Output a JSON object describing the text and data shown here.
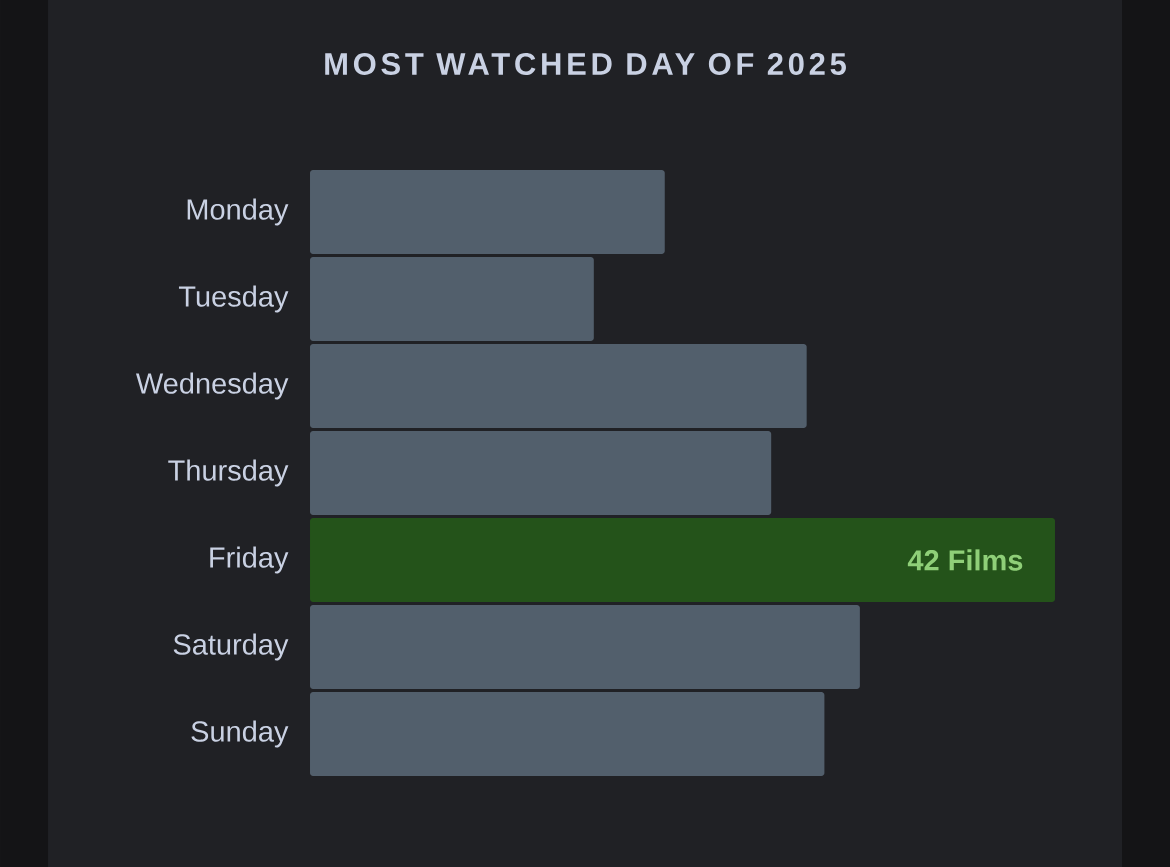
{
  "chart_data": {
    "type": "bar",
    "orientation": "horizontal",
    "title": "MOST WATCHED DAY OF 2025",
    "categories": [
      "Monday",
      "Tuesday",
      "Wednesday",
      "Thursday",
      "Friday",
      "Saturday",
      "Sunday"
    ],
    "values": [
      20,
      16,
      28,
      26,
      42,
      31,
      29
    ],
    "colors": [
      "#525f6c",
      "#525f6c",
      "#525f6c",
      "#525f6c",
      "#24531a",
      "#525f6c",
      "#525f6c"
    ],
    "value_labels": [
      null,
      null,
      null,
      null,
      "42 Films",
      null,
      null
    ]
  }
}
